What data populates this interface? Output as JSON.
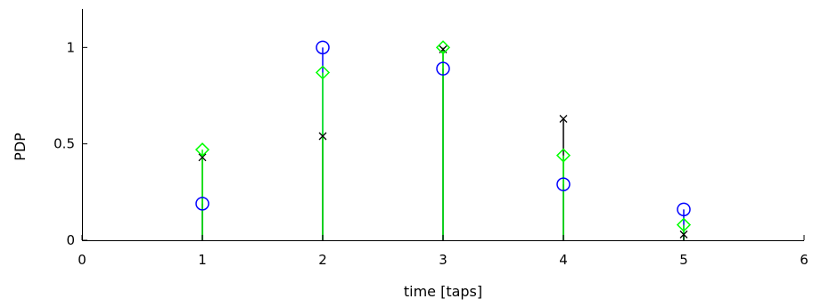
{
  "chart_data": {
    "type": "scatter",
    "plot_style": "stem",
    "title": "",
    "xlabel": "time [taps]",
    "ylabel": "PDP",
    "xlim": [
      0,
      6
    ],
    "ylim": [
      0,
      1.2
    ],
    "xticks": [
      0,
      1,
      2,
      3,
      4,
      5,
      6
    ],
    "yticks": [
      0,
      0.5,
      1
    ],
    "xtick_labels": [
      "0",
      "1",
      "2",
      "3",
      "4",
      "5",
      "6"
    ],
    "ytick_labels": [
      "0",
      "0.5",
      "1"
    ],
    "grid": false,
    "box": "left-bottom axes only",
    "series": [
      {
        "marker": "circle",
        "color": "#0000ff",
        "x": [
          1,
          2,
          3,
          4,
          5
        ],
        "values": [
          0.19,
          1.0,
          0.89,
          0.29,
          0.16
        ]
      },
      {
        "marker": "cross",
        "color": "#000000",
        "x": [
          1,
          2,
          3,
          4,
          5
        ],
        "values": [
          0.43,
          0.54,
          0.99,
          0.63,
          0.03
        ]
      },
      {
        "marker": "diamond",
        "color": "#00ff00",
        "x": [
          1,
          2,
          3,
          4,
          5
        ],
        "values": [
          0.47,
          0.87,
          1.0,
          0.44,
          0.08
        ]
      }
    ]
  }
}
